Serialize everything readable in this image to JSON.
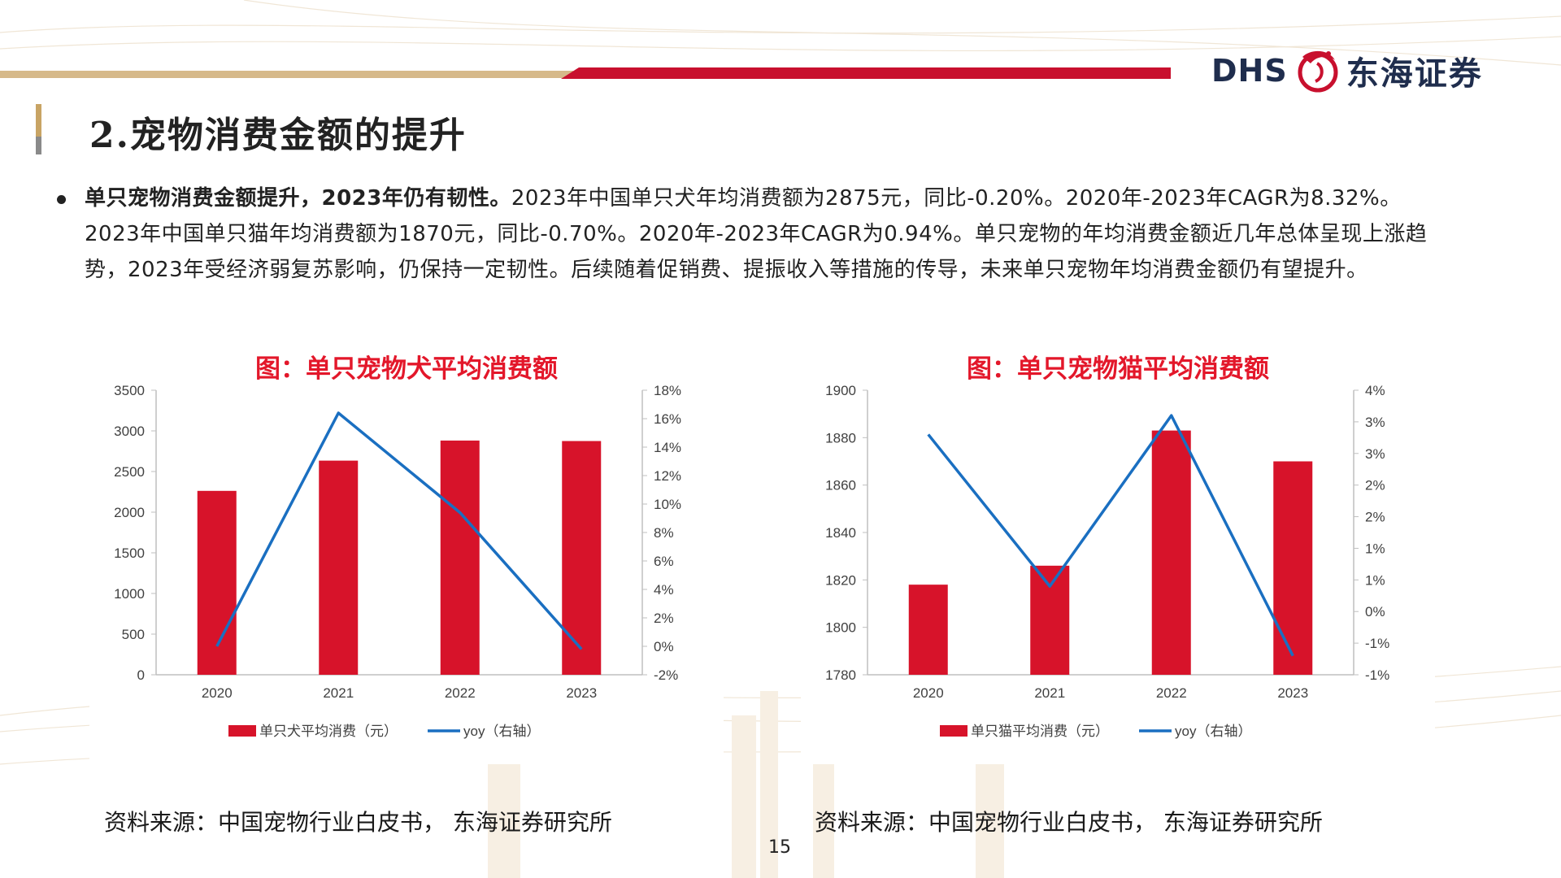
{
  "header": {
    "logo_latin": "DHS",
    "logo_chinese": "东海证券",
    "title": "2.宠物消费金额的提升"
  },
  "paragraph": {
    "lead": "单只宠物消费金额提升，2023年仍有韧性。",
    "body": "2023年中国单只犬年均消费额为2875元，同比-0.20%。2020年-2023年CAGR为8.32%。2023年中国单只猫年均消费额为1870元，同比-0.70%。2020年-2023年CAGR为0.94%。单只宠物的年均消费金额近几年总体呈现上涨趋势，2023年受经济弱复苏影响，仍保持一定韧性。后续随着促销费、提振收入等措施的传导，未来单只宠物年均消费金额仍有望提升。"
  },
  "chart_data": [
    {
      "type": "bar+line",
      "title": "图：单只宠物犬平均消费额",
      "categories": [
        "2020",
        "2021",
        "2022",
        "2023"
      ],
      "series": [
        {
          "name": "单只犬平均消费（元）",
          "kind": "bar",
          "axis": "left",
          "values": [
            2262,
            2634,
            2881,
            2875
          ]
        },
        {
          "name": "yoy（右轴）",
          "kind": "line",
          "axis": "right",
          "values": [
            0.0,
            16.4,
            9.4,
            -0.2
          ]
        }
      ],
      "left_axis": {
        "min": 0,
        "max": 3500,
        "ticks": [
          "0",
          "500",
          "1000",
          "1500",
          "2000",
          "2500",
          "3000",
          "3500"
        ]
      },
      "right_axis": {
        "min": -2,
        "max": 18,
        "ticks": [
          "-2%",
          "0%",
          "2%",
          "4%",
          "6%",
          "8%",
          "10%",
          "12%",
          "14%",
          "16%",
          "18%"
        ]
      },
      "colors": {
        "bar": "#d7132a",
        "line": "#1a6fc1"
      },
      "legend_position": "bottom"
    },
    {
      "type": "bar+line",
      "title": "图：单只宠物猫平均消费额",
      "categories": [
        "2020",
        "2021",
        "2022",
        "2023"
      ],
      "series": [
        {
          "name": "单只猫平均消费（元）",
          "kind": "bar",
          "axis": "left",
          "values": [
            1818,
            1826,
            1883,
            1870
          ]
        },
        {
          "name": "yoy（右轴）",
          "kind": "line",
          "axis": "right",
          "values": [
            2.8,
            0.4,
            3.1,
            -0.7
          ]
        }
      ],
      "left_axis": {
        "min": 1780,
        "max": 1900,
        "ticks": [
          "1780",
          "1800",
          "1820",
          "1840",
          "1860",
          "1880",
          "1900"
        ]
      },
      "right_axis": {
        "min": -1,
        "max": 3.5,
        "ticks": [
          "-1%",
          "-1%",
          "0%",
          "1%",
          "1%",
          "2%",
          "2%",
          "3%",
          "3%",
          "4%"
        ]
      },
      "colors": {
        "bar": "#d7132a",
        "line": "#1a6fc1"
      },
      "legend_position": "bottom"
    }
  ],
  "sources": {
    "left": "资料来源：中国宠物行业白皮书， 东海证券研究所",
    "right": "资料来源：中国宠物行业白皮书， 东海证券研究所"
  },
  "page_number": "15"
}
